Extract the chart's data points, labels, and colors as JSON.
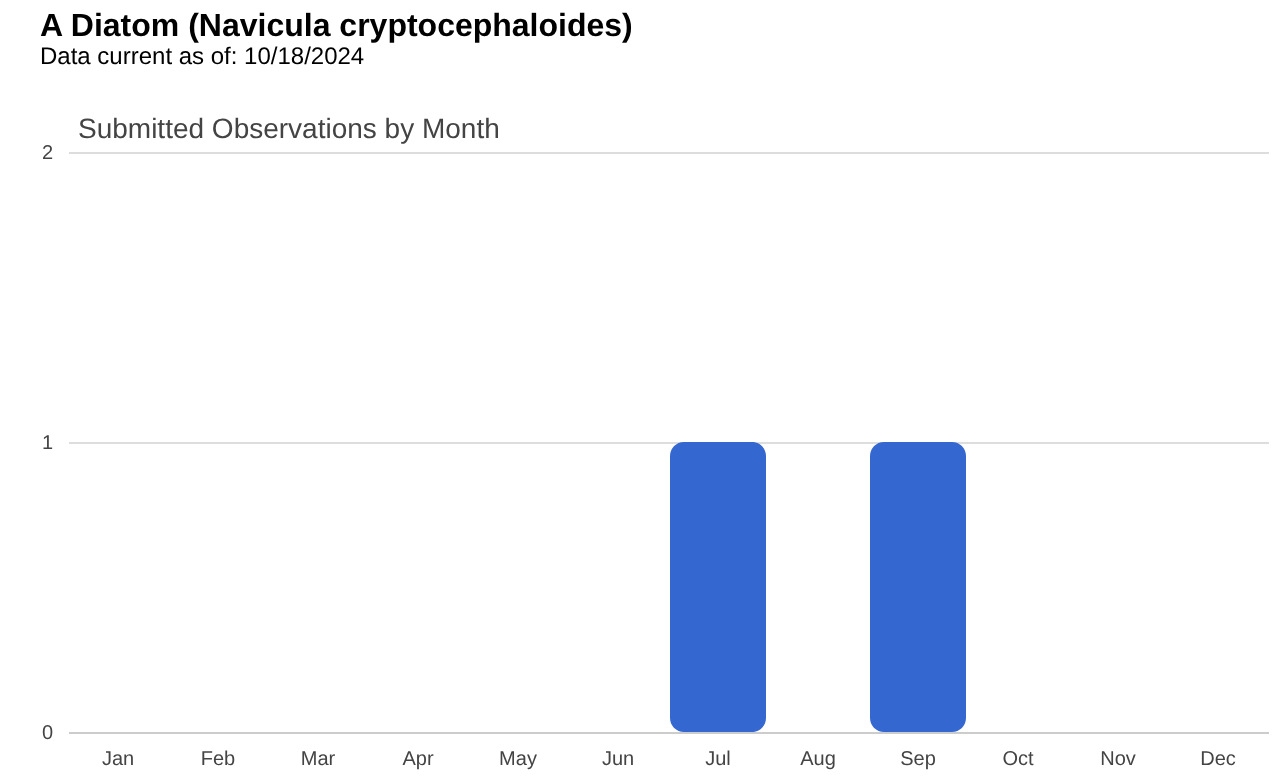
{
  "chart_data": {
    "type": "bar",
    "title": "A Diatom   (Navicula cryptocephaloides)",
    "subtitle": "Data current as of: 10/18/2024",
    "annotations": [
      "Submitted Observations by Month"
    ],
    "categories": [
      "Jan",
      "Feb",
      "Mar",
      "Apr",
      "May",
      "Jun",
      "Jul",
      "Aug",
      "Sep",
      "Oct",
      "Nov",
      "Dec"
    ],
    "values": [
      0,
      0,
      0,
      0,
      0,
      0,
      1,
      0,
      1,
      0,
      0,
      0
    ],
    "color": "#3567d0",
    "ylim": [
      0,
      2
    ],
    "yticks": [
      0,
      1,
      2
    ],
    "grid": "y"
  }
}
